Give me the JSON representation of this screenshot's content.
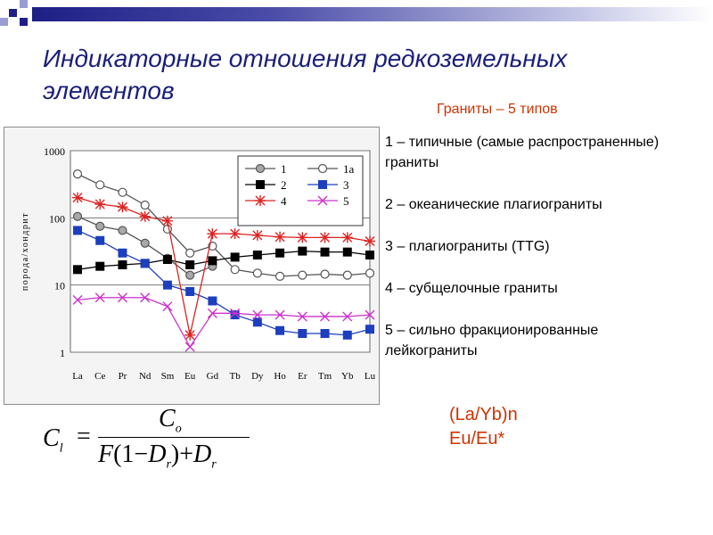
{
  "slide": {
    "title": "Индикаторные отношения редкоземельных элементов",
    "subtitle": "Граниты – 5 типов",
    "legend": [
      "1 – типичные (самые распространенные) граниты",
      "2 – океанические плагиограниты",
      "3 – плагиограниты (TTG)",
      "4 – субщелочные граниты",
      "5 – сильно фракционированные лейкограниты"
    ],
    "ratios": [
      "(La/Yb)n",
      "Eu/Eu*"
    ]
  },
  "formula": {
    "lhs": "C",
    "lhs_sub": "l",
    "eq": "=",
    "num": "C",
    "num_sub": "o",
    "den_f": "F",
    "den_mid": "(1−",
    "den_d1": "D",
    "den_d1_sub": "r",
    "den_end": ")+",
    "den_d2": "D",
    "den_d2_sub": "r"
  },
  "colors": {
    "title": "#1a1f7a",
    "accent": "#cc3300",
    "deco_bar": "#1d1f86"
  },
  "chart_data": {
    "type": "line",
    "ylabel": "порода/хондрит",
    "yscale": "log",
    "ylim": [
      1,
      1000
    ],
    "yticks": [
      "1",
      "10",
      "100",
      "1000"
    ],
    "categories": [
      "La",
      "Ce",
      "Pr",
      "Nd",
      "Sm",
      "Eu",
      "Gd",
      "Tb",
      "Dy",
      "Ho",
      "Er",
      "Tm",
      "Yb",
      "Lu"
    ],
    "grid": "horizontal",
    "legend_position": "top-right",
    "series": [
      {
        "name": "1",
        "marker": "circle-filled",
        "color": "#555555",
        "values": [
          105,
          75,
          65,
          42,
          25,
          14,
          19,
          null,
          null,
          null,
          null,
          null,
          null,
          null
        ]
      },
      {
        "name": "1a",
        "marker": "circle-open",
        "color": "#555555",
        "values": [
          450,
          310,
          240,
          155,
          68,
          30,
          38,
          17,
          15,
          13.5,
          14,
          14.5,
          14,
          15
        ]
      },
      {
        "name": "2",
        "marker": "square-filled",
        "color": "#000000",
        "values": [
          17,
          19,
          20,
          21,
          24,
          20,
          23,
          26,
          28,
          30,
          32,
          31,
          31,
          28
        ]
      },
      {
        "name": "3",
        "marker": "square-filled",
        "color": "#1c3fbf",
        "values": [
          65,
          46,
          30,
          21,
          10,
          8,
          5.8,
          3.6,
          2.8,
          2.1,
          1.9,
          1.9,
          1.8,
          2.2
        ]
      },
      {
        "name": "4",
        "marker": "asterisk",
        "color": "#dd2222",
        "values": [
          200,
          160,
          145,
          105,
          90,
          1.8,
          58,
          58,
          55,
          52,
          51,
          51,
          51,
          45
        ]
      },
      {
        "name": "5",
        "marker": "cross",
        "color": "#cc33cc",
        "values": [
          6,
          6.5,
          6.5,
          6.5,
          4.8,
          1.2,
          3.8,
          3.8,
          3.6,
          3.6,
          3.4,
          3.4,
          3.4,
          3.6
        ]
      }
    ]
  }
}
